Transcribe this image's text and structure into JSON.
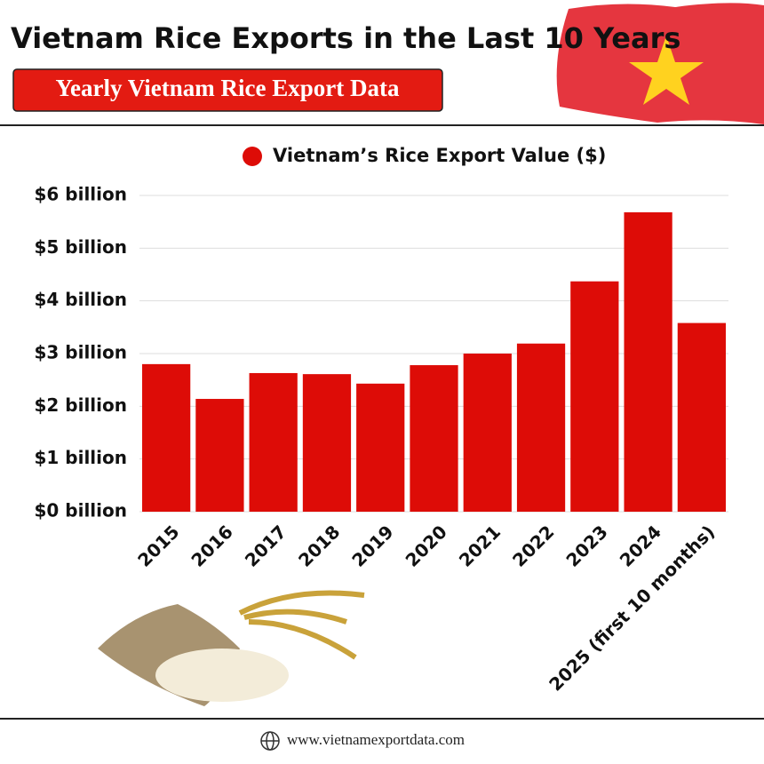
{
  "chart_data": {
    "type": "bar",
    "title": "Vietnam Rice Exports in the Last 10 Years",
    "subtitle": "Yearly Vietnam Rice Export Data",
    "categories": [
      "2015",
      "2016",
      "2017",
      "2018",
      "2019",
      "2020",
      "2021",
      "2022",
      "2023",
      "2024",
      "2025 (first 10 months)"
    ],
    "series": [
      {
        "name": "Vietnam’s Rice Export Value ($)",
        "color": "#dd0c07",
        "values": [
          2.8,
          2.14,
          2.63,
          2.61,
          2.43,
          2.78,
          3.0,
          3.19,
          4.37,
          5.68,
          3.58
        ]
      }
    ],
    "ylim": [
      0,
      6
    ],
    "yticks": [
      {
        "value": 0,
        "label": "$0 billion"
      },
      {
        "value": 1,
        "label": "$1 billion"
      },
      {
        "value": 2,
        "label": "$2 billion"
      },
      {
        "value": 3,
        "label": "$3 billion"
      },
      {
        "value": 4,
        "label": "$4 billion"
      },
      {
        "value": 5,
        "label": "$5 billion"
      },
      {
        "value": 6,
        "label": "$6 billion"
      }
    ],
    "grid": true,
    "legend": "top",
    "footer": "www.vietnamexportdata.com"
  }
}
